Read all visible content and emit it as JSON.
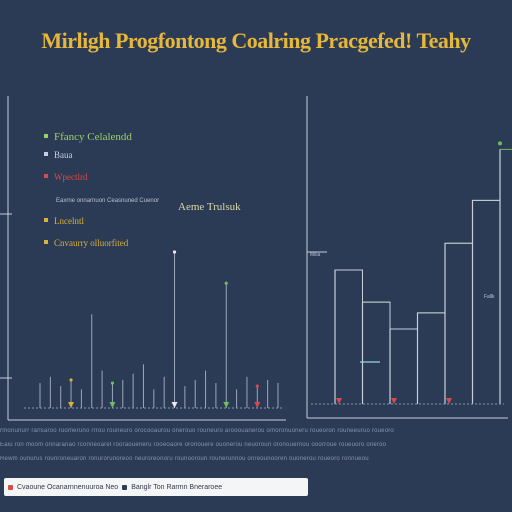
{
  "title": "Mirligh Progfontong Coalring Pracgefed! Teahy",
  "colors": {
    "background": "#2b3a55",
    "title": "#e6b73a",
    "axis": "#c8cfdc",
    "green": "#6cbf5a",
    "red": "#d94a4a",
    "yellow": "#d9b23a",
    "white": "#e8ecf2"
  },
  "chart_data": [
    {
      "type": "line",
      "legend_placement": "top-left",
      "legend": [
        {
          "label": "Ffancy Celalendd",
          "color": "#9bd06a"
        },
        {
          "label": "Baua",
          "color": "#c8cfdc"
        },
        {
          "label": "Wpectlrd",
          "color": "#d94a4a"
        },
        {
          "label": "Lncelntl",
          "color": "#d9b23a"
        },
        {
          "label": "Cnvaurry olluorfited",
          "color": "#d9b23a"
        }
      ],
      "annotation": "Aeme Trulsuk",
      "secondary_note": "Eaxrne onnarnuon Ceasnuned Cuenor",
      "x": [
        1,
        2,
        3,
        4,
        5,
        6,
        7,
        8,
        9,
        10,
        11,
        12,
        13,
        14,
        15,
        16,
        17,
        18,
        19,
        20,
        21,
        22,
        23,
        24
      ],
      "values": [
        8,
        10,
        7,
        9,
        6,
        30,
        12,
        8,
        9,
        11,
        14,
        6,
        10,
        50,
        7,
        9,
        12,
        8,
        40,
        6,
        10,
        7,
        9,
        8
      ],
      "markers": [
        {
          "x": 4,
          "kind": "yellow"
        },
        {
          "x": 8,
          "kind": "green"
        },
        {
          "x": 14,
          "kind": "white"
        },
        {
          "x": 19,
          "kind": "green"
        },
        {
          "x": 22,
          "kind": "red"
        }
      ],
      "ylim": [
        0,
        100
      ]
    },
    {
      "type": "line",
      "steps": [
        {
          "x": 1,
          "y": 50
        },
        {
          "x": 2,
          "y": 38
        },
        {
          "x": 3,
          "y": 28
        },
        {
          "x": 4,
          "y": 34
        },
        {
          "x": 5,
          "y": 60
        },
        {
          "x": 6,
          "y": 76
        },
        {
          "x": 7,
          "y": 95
        }
      ],
      "labels": [
        "Milla",
        "Fallk"
      ],
      "ylim": [
        0,
        100
      ]
    }
  ],
  "footnotes": [
    "rmonunurr rarlsaroo ruomeruno rrrou rouneuro orocooaurou onerouo rouneuro arooouanerou omoronuoneru roueoron rouneeuruo roueoro",
    "Eaiu ron moom onnaranao rconneoarel rooraoueneru rooeoaore oronouere ouonerou neuoroun oronouernou ooorroue roueuoro oneroo",
    "Rewm ounurus rounroneuaron ronurorunoreoo neuroreonoru rounooroun rounerunnou onreounooren ouonerou roueoro ronnueou"
  ],
  "legend_bar": [
    {
      "label": "Cvaoune Ocanarnnenuuroa Neo",
      "color": "#d94a4a"
    },
    {
      "label": "Banglr Ton Rarmn Bneraroee",
      "color": "#2b3a55"
    }
  ]
}
